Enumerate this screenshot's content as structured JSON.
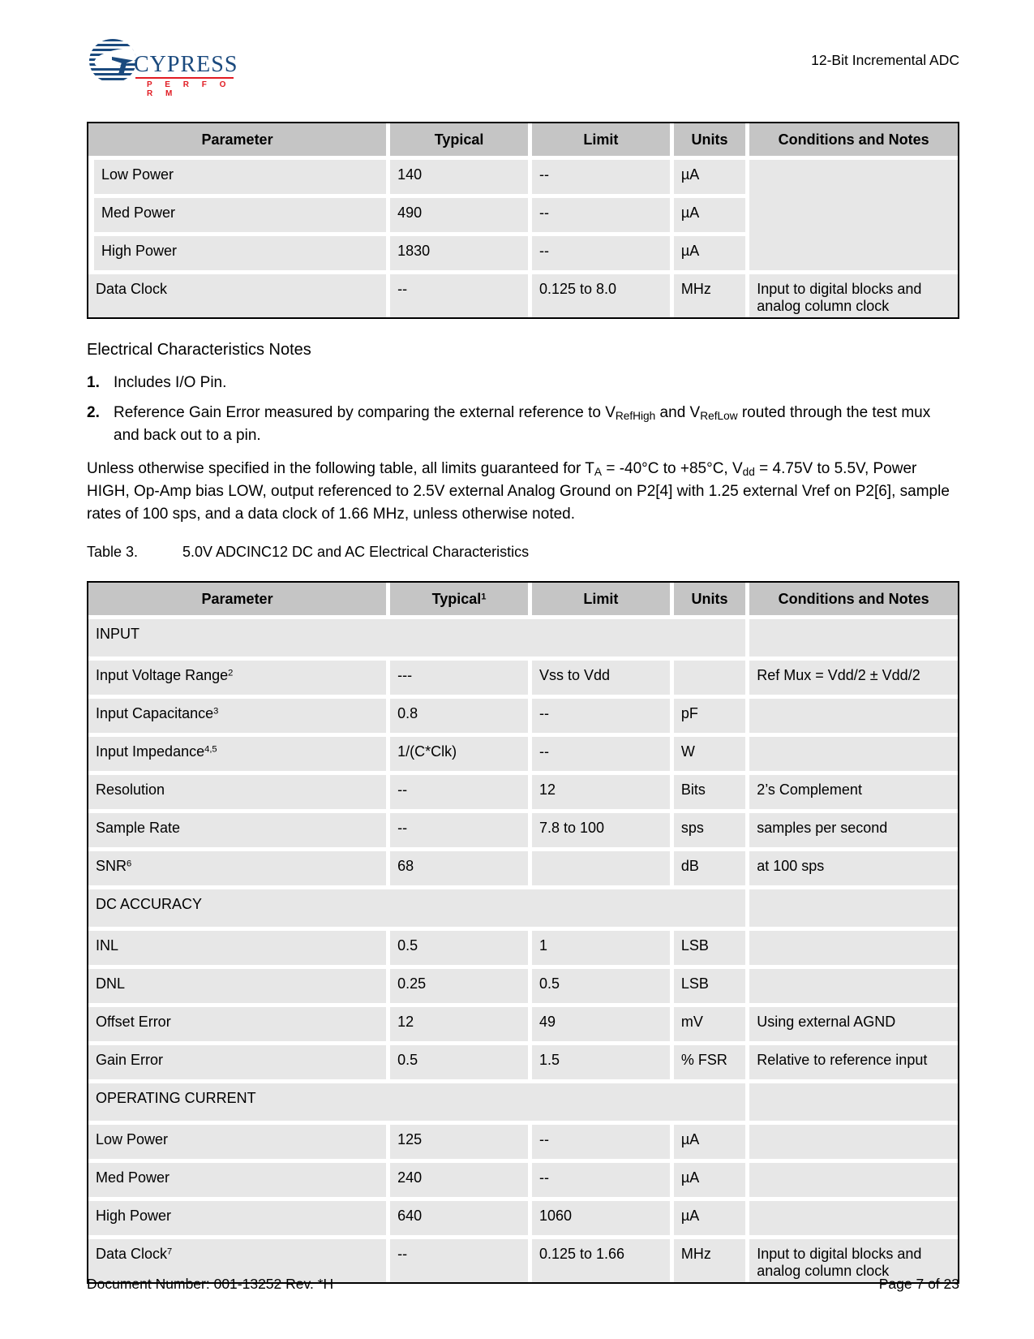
{
  "header": {
    "title": "12-Bit Incremental ADC",
    "logo_brand": "CYPRESS",
    "logo_tagline": "P E R F O R M"
  },
  "footer": {
    "left": "Document Number: 001-13252 Rev. *H",
    "right": "Page 7 of 23"
  },
  "colors": {
    "table_header_bg": "#c5c5c5",
    "table_cell_bg": "#e7e7e7",
    "table_border": "#000000",
    "logo_navy": "#1b4a7e",
    "logo_red": "#e11b22"
  },
  "notes_section": {
    "title": "Electrical Characteristics Notes",
    "notes": [
      {
        "num": "1.",
        "segments": [
          {
            "t": "Includes I/O Pin."
          }
        ]
      },
      {
        "num": "2.",
        "segments": [
          {
            "t": "Reference Gain Error measured by comparing the external reference to V"
          },
          {
            "t": "RefHigh",
            "sub": true
          },
          {
            "t": " and V"
          },
          {
            "t": "RefLow",
            "sub": true
          },
          {
            "t": " routed through the test mux and back out to a pin."
          }
        ]
      }
    ]
  },
  "conditions_paragraph": {
    "segments": [
      {
        "t": "Unless otherwise specified in the following table, all limits guaranteed for T"
      },
      {
        "t": "A",
        "sub": true
      },
      {
        "t": " = -40°C to +85°C, V"
      },
      {
        "t": "dd",
        "sub": true
      },
      {
        "t": " = 4.75V to 5.5V, Power HIGH, Op-Amp bias LOW, output referenced to 2.5V external Analog Ground on P2[4] with 1.25 external Vref on P2[6], sample rates of 100 sps, and a data clock of 1.66 MHz, unless otherwise noted."
      }
    ]
  },
  "table3_caption": {
    "label": "Table 3.",
    "title": "5.0V ADCINC12 DC and AC Electrical Characteristics"
  },
  "table1": {
    "headers": [
      {
        "t": "Parameter"
      },
      {
        "t": "Typical"
      },
      {
        "t": "Limit"
      },
      {
        "t": "Units"
      },
      {
        "t": "Conditions and Notes"
      }
    ],
    "rows": [
      {
        "indent": true,
        "param": "Low Power",
        "typical": "140",
        "limit": "--",
        "units": "µA",
        "cond": "",
        "cond_rowspan": 3
      },
      {
        "indent": true,
        "param": "Med Power",
        "typical": "490",
        "limit": "--",
        "units": "µA",
        "cond": null
      },
      {
        "indent": true,
        "param": "High Power",
        "typical": "1830",
        "limit": "--",
        "units": "µA",
        "cond": null
      },
      {
        "param": "Data Clock",
        "typical": "--",
        "limit": "0.125 to 8.0",
        "units": "MHz",
        "cond": "Input to digital blocks and analog column clock"
      }
    ]
  },
  "table2": {
    "headers": [
      {
        "t": "Parameter"
      },
      {
        "t": "Typical",
        "sup": "1"
      },
      {
        "t": "Limit"
      },
      {
        "t": "Units"
      },
      {
        "t": "Conditions and Notes"
      }
    ],
    "rows": [
      {
        "section": "INPUT"
      },
      {
        "param": {
          "t": "Input Voltage Range",
          "sup": "2"
        },
        "typical": "---",
        "limit": "Vss to Vdd",
        "units": "",
        "cond": "Ref Mux = Vdd/2 ± Vdd/2"
      },
      {
        "param": {
          "t": "Input Capacitance",
          "sup": "3"
        },
        "typical": "0.8",
        "limit": "--",
        "units": "pF",
        "cond": ""
      },
      {
        "param": {
          "t": "Input Impedance",
          "sup": "4,5"
        },
        "typical": "1/(C*Clk)",
        "limit": "--",
        "units": "W",
        "cond": ""
      },
      {
        "param": "Resolution",
        "typical": "--",
        "limit": "12",
        "units": "Bits",
        "cond": "2’s Complement"
      },
      {
        "param": "Sample Rate",
        "typical": "--",
        "limit": "7.8 to 100",
        "units": "sps",
        "cond": "samples per second"
      },
      {
        "param": {
          "t": "SNR",
          "sup": "6"
        },
        "typical": "68",
        "limit": "",
        "units": "dB",
        "cond": "at 100 sps"
      },
      {
        "section": "DC ACCURACY"
      },
      {
        "param": "INL",
        "typical": "0.5",
        "limit": "1",
        "units": "LSB",
        "cond": ""
      },
      {
        "param": "DNL",
        "typical": "0.25",
        "limit": "0.5",
        "units": "LSB",
        "cond": ""
      },
      {
        "param": "Offset Error",
        "typical": "12",
        "limit": "49",
        "units": "mV",
        "cond": "Using external AGND"
      },
      {
        "param": "Gain Error",
        "typical": "0.5",
        "limit": "1.5",
        "units": "% FSR",
        "cond": "Relative to reference input"
      },
      {
        "section": "OPERATING CURRENT"
      },
      {
        "param": "Low Power",
        "typical": "125",
        "limit": "--",
        "units": "µA",
        "cond": ""
      },
      {
        "param": "Med Power",
        "typical": "240",
        "limit": "--",
        "units": "µA",
        "cond": ""
      },
      {
        "param": "High Power",
        "typical": "640",
        "limit": "1060",
        "units": "µA",
        "cond": ""
      },
      {
        "param": {
          "t": "Data Clock",
          "sup": "7"
        },
        "typical": "--",
        "limit": "0.125 to 1.66",
        "units": "MHz",
        "cond": "Input to digital blocks and analog column clock"
      }
    ]
  }
}
